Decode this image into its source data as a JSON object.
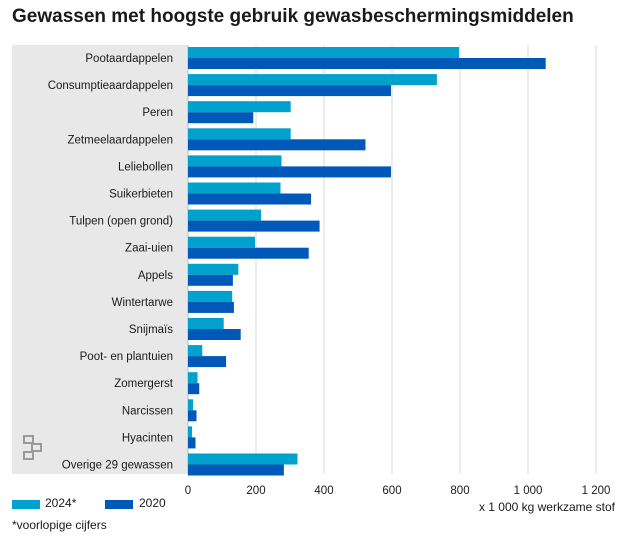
{
  "title": "Gewassen met hoogste gebruik gewasbeschermingsmiddelen",
  "chart_data": {
    "type": "bar",
    "orientation": "horizontal",
    "categories": [
      "Pootaardappelen",
      "Consumptieaardappelen",
      "Peren",
      "Zetmeelaardappelen",
      "Leliebollen",
      "Suikerbieten",
      "Tulpen (open grond)",
      "Zaai-uien",
      "Appels",
      "Wintertarwe",
      "Snijmaïs",
      "Poot- en plantuien",
      "Zomergerst",
      "Narcissen",
      "Hyacinten",
      "Overige 29 gewassen"
    ],
    "series": [
      {
        "name": "2024*",
        "color": "#00A1CD",
        "values": [
          797,
          732,
          302,
          302,
          275,
          272,
          215,
          197,
          148,
          130,
          105,
          42,
          28,
          15,
          12,
          322
        ]
      },
      {
        "name": "2020",
        "color": "#0058B8",
        "values": [
          1052,
          597,
          192,
          522,
          597,
          362,
          387,
          355,
          132,
          135,
          155,
          112,
          33,
          25,
          22,
          282
        ]
      }
    ],
    "xlim": [
      0,
      1200
    ],
    "xticks": [
      0,
      200,
      400,
      600,
      800,
      1000,
      1200
    ],
    "xtick_labels": [
      "0",
      "200",
      "400",
      "600",
      "800",
      "1 000",
      "1 200"
    ],
    "xlabel": "x 1 000 kg werkzame stof",
    "grid": true
  },
  "legend": {
    "items": [
      "2024*",
      "2020"
    ]
  },
  "footnote": "*voorlopige cijfers",
  "logo": "cbs",
  "colors": {
    "panel": "#E8E8E8",
    "grid": "#D9D9D9",
    "series_2024": "#00A1CD",
    "series_2020": "#0058B8"
  }
}
